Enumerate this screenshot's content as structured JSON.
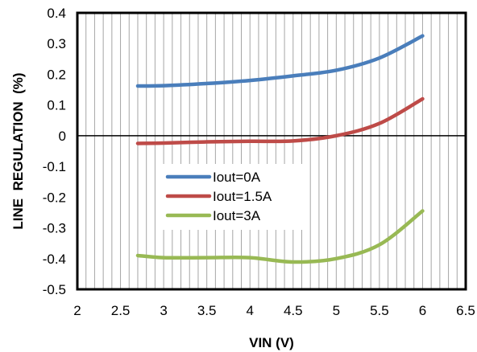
{
  "chart_data": {
    "type": "line",
    "xlabel": "VIN (V)",
    "ylabel": "LINE  REGULATION  (%)",
    "xlim": [
      2,
      6.5
    ],
    "ylim": [
      -0.5,
      0.4
    ],
    "x_ticks": [
      "2",
      "2.5",
      "3",
      "3.5",
      "4",
      "4.5",
      "5",
      "5.5",
      "6",
      "6.5"
    ],
    "y_ticks": [
      "0.4",
      "0.3",
      "0.2",
      "0.1",
      "0",
      "-0.1",
      "-0.2",
      "-0.3",
      "-0.4",
      "-0.5"
    ],
    "minor_x_step": 0.1,
    "grid": "vertical",
    "zero_line": true,
    "legend_position": "center-left",
    "series": [
      {
        "name": "Iout=0A",
        "color": "#4a7ebb",
        "x": [
          2.7,
          3.0,
          3.5,
          4.0,
          4.5,
          5.0,
          5.5,
          6.0
        ],
        "y": [
          0.162,
          0.163,
          0.17,
          0.18,
          0.195,
          0.213,
          0.253,
          0.325
        ]
      },
      {
        "name": "Iout=1.5A",
        "color": "#be4b48",
        "x": [
          2.7,
          3.0,
          3.5,
          4.0,
          4.5,
          5.0,
          5.5,
          6.0
        ],
        "y": [
          -0.025,
          -0.024,
          -0.02,
          -0.018,
          -0.017,
          0.0,
          0.04,
          0.12
        ]
      },
      {
        "name": "Iout=3A",
        "color": "#98b954",
        "x": [
          2.7,
          3.0,
          3.5,
          4.0,
          4.5,
          5.0,
          5.5,
          6.0
        ],
        "y": [
          -0.39,
          -0.397,
          -0.397,
          -0.397,
          -0.411,
          -0.4,
          -0.355,
          -0.245
        ]
      }
    ]
  }
}
